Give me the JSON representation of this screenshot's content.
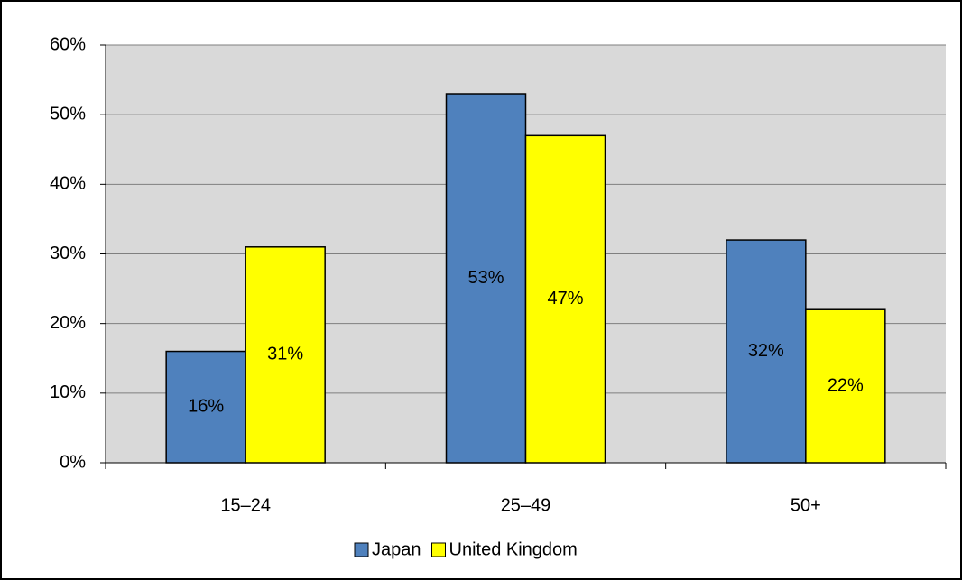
{
  "chart_data": {
    "type": "bar",
    "categories": [
      "15–24",
      "25–49",
      "50+"
    ],
    "series": [
      {
        "name": "Japan",
        "color": "#4f81bd",
        "values": [
          16,
          53,
          32
        ],
        "value_labels": [
          "16%",
          "53%",
          "32%"
        ]
      },
      {
        "name": "United Kingdom",
        "color": "#ffff00",
        "values": [
          31,
          47,
          22
        ],
        "value_labels": [
          "31%",
          "47%",
          "22%"
        ]
      }
    ],
    "ylim": [
      0,
      60
    ],
    "yticks": [
      {
        "value": 0,
        "label": "0%"
      },
      {
        "value": 10,
        "label": "10%"
      },
      {
        "value": 20,
        "label": "20%"
      },
      {
        "value": 30,
        "label": "30%"
      },
      {
        "value": 40,
        "label": "40%"
      },
      {
        "value": 50,
        "label": "50%"
      },
      {
        "value": 60,
        "label": "60%"
      }
    ],
    "grid": true,
    "legend": "bottom"
  }
}
